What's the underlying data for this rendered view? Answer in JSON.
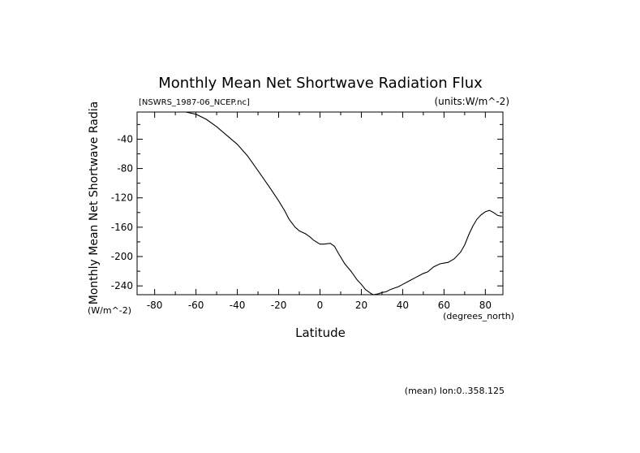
{
  "chart_data": {
    "type": "line",
    "title": "Monthly Mean Net Shortwave Radiation Flux",
    "subtitle_left": "[NSWRS_1987-06_NCEP.nc]",
    "subtitle_right": "(units:W/m^-2)",
    "xlabel": "Latitude",
    "x_units": "(degrees_north)",
    "ylabel": "Monthly Mean Net Shortwave Radia",
    "y_units": "(W/m^-2)",
    "footer": "(mean) lon:0..358.125",
    "xlim": [
      -88.5,
      88.5
    ],
    "ylim": [
      -252,
      -3
    ],
    "x_ticks": [
      -80,
      -60,
      -40,
      -20,
      0,
      20,
      40,
      60,
      80
    ],
    "y_ticks": [
      -40,
      -80,
      -120,
      -160,
      -200,
      -240
    ],
    "series": [
      {
        "x": [
          -65,
          -60,
          -55,
          -50,
          -45,
          -40,
          -35,
          -30,
          -25,
          -20,
          -17,
          -15,
          -12,
          -10,
          -7,
          -5,
          -3,
          0,
          2,
          5,
          7,
          9,
          12,
          15,
          18,
          20,
          22,
          24,
          25,
          26,
          28,
          30,
          32,
          34,
          36,
          38,
          40,
          42,
          44,
          46,
          48,
          50,
          52,
          55,
          58,
          60,
          62,
          65,
          68,
          70,
          72,
          74,
          76,
          78,
          80,
          82,
          84,
          86,
          88
        ],
        "y": [
          -3,
          -6,
          -13,
          -23,
          -35,
          -47,
          -63,
          -83,
          -103,
          -124,
          -138,
          -149,
          -160,
          -165,
          -169,
          -173,
          -178,
          -183,
          -183,
          -182,
          -186,
          -196,
          -210,
          -220,
          -232,
          -238,
          -245,
          -249,
          -251,
          -252,
          -251,
          -249,
          -248,
          -245,
          -243,
          -241,
          -238,
          -235,
          -232,
          -229,
          -226,
          -223,
          -221,
          -214,
          -210,
          -209,
          -208,
          -203,
          -194,
          -184,
          -170,
          -158,
          -149,
          -143,
          -139,
          -137,
          -140,
          -144,
          -145
        ]
      }
    ]
  }
}
